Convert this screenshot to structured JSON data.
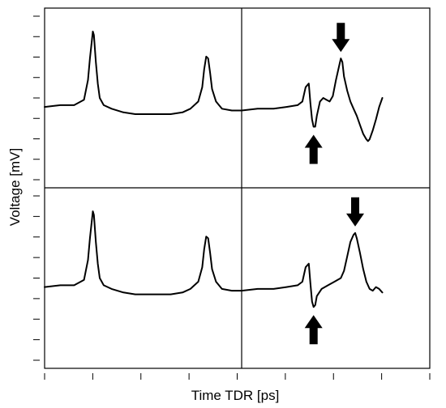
{
  "chart_data": {
    "type": "line",
    "layout": "2x2 panel grid",
    "xlabel": "Time TDR [ps]",
    "ylabel": "Voltage [mV]",
    "xlim": [
      0,
      100
    ],
    "ylim": [
      0,
      100
    ],
    "x_tick_count": 9,
    "y_ticks_per_panel": 9,
    "grid": false,
    "legend": "none",
    "panels": [
      {
        "id": "top-left",
        "row": 0,
        "col": 0,
        "series": [
          {
            "points": [
              [
                0,
                45
              ],
              [
                8,
                46
              ],
              [
                15,
                46
              ],
              [
                20,
                49
              ],
              [
                22,
                60
              ],
              [
                23,
                72
              ],
              [
                24,
                82
              ],
              [
                24.5,
                87
              ],
              [
                25,
                85
              ],
              [
                26,
                70
              ],
              [
                27,
                58
              ],
              [
                28,
                50
              ],
              [
                30,
                46
              ],
              [
                34,
                44
              ],
              [
                40,
                42
              ],
              [
                46,
                41
              ],
              [
                52,
                41
              ],
              [
                58,
                41
              ],
              [
                64,
                41
              ],
              [
                70,
                42
              ],
              [
                74,
                44
              ],
              [
                78,
                48
              ],
              [
                80,
                56
              ],
              [
                81,
                66
              ],
              [
                82,
                73
              ],
              [
                83,
                72
              ],
              [
                84,
                64
              ],
              [
                85,
                55
              ],
              [
                87,
                48
              ],
              [
                90,
                44
              ],
              [
                95,
                43
              ],
              [
                100,
                43
              ]
            ]
          }
        ],
        "arrows": []
      },
      {
        "id": "top-right",
        "row": 0,
        "col": 1,
        "series": [
          {
            "points": [
              [
                0,
                43
              ],
              [
                10,
                44
              ],
              [
                20,
                44
              ],
              [
                28,
                45
              ],
              [
                35,
                46
              ],
              [
                38,
                48
              ],
              [
                40,
                56
              ],
              [
                42,
                58
              ],
              [
                43,
                47
              ],
              [
                44,
                38
              ],
              [
                45,
                34
              ],
              [
                46,
                34
              ],
              [
                47,
                40
              ],
              [
                49,
                48
              ],
              [
                51,
                50
              ],
              [
                53,
                49
              ],
              [
                55,
                48
              ],
              [
                57,
                51
              ],
              [
                59,
                60
              ],
              [
                61,
                68
              ],
              [
                62,
                72
              ],
              [
                63,
                70
              ],
              [
                64,
                62
              ],
              [
                66,
                54
              ],
              [
                68,
                48
              ],
              [
                70,
                44
              ],
              [
                72,
                40
              ],
              [
                74,
                35
              ],
              [
                76,
                30
              ],
              [
                78,
                27
              ],
              [
                79,
                26
              ],
              [
                80,
                27
              ],
              [
                82,
                32
              ],
              [
                84,
                38
              ],
              [
                86,
                45
              ],
              [
                88,
                50
              ]
            ]
          }
        ],
        "arrows": [
          {
            "direction": "up",
            "target_x": 45,
            "target_y": 34
          },
          {
            "direction": "down",
            "target_x": 62,
            "target_y": 72
          }
        ]
      },
      {
        "id": "bottom-left",
        "row": 1,
        "col": 0,
        "series": [
          {
            "points": [
              [
                0,
                45
              ],
              [
                8,
                46
              ],
              [
                15,
                46
              ],
              [
                20,
                49
              ],
              [
                22,
                60
              ],
              [
                23,
                72
              ],
              [
                24,
                82
              ],
              [
                24.5,
                87
              ],
              [
                25,
                85
              ],
              [
                26,
                70
              ],
              [
                27,
                58
              ],
              [
                28,
                50
              ],
              [
                30,
                46
              ],
              [
                34,
                44
              ],
              [
                40,
                42
              ],
              [
                46,
                41
              ],
              [
                52,
                41
              ],
              [
                58,
                41
              ],
              [
                64,
                41
              ],
              [
                70,
                42
              ],
              [
                74,
                44
              ],
              [
                78,
                48
              ],
              [
                80,
                56
              ],
              [
                81,
                66
              ],
              [
                82,
                73
              ],
              [
                83,
                72
              ],
              [
                84,
                64
              ],
              [
                85,
                55
              ],
              [
                87,
                48
              ],
              [
                90,
                44
              ],
              [
                95,
                43
              ],
              [
                100,
                43
              ]
            ]
          }
        ],
        "arrows": []
      },
      {
        "id": "bottom-right",
        "row": 1,
        "col": 1,
        "series": [
          {
            "points": [
              [
                0,
                43
              ],
              [
                10,
                44
              ],
              [
                20,
                44
              ],
              [
                28,
                45
              ],
              [
                35,
                46
              ],
              [
                38,
                48
              ],
              [
                40,
                56
              ],
              [
                42,
                58
              ],
              [
                43,
                47
              ],
              [
                44,
                37
              ],
              [
                45,
                34
              ],
              [
                46,
                35
              ],
              [
                47,
                40
              ],
              [
                50,
                44
              ],
              [
                54,
                46
              ],
              [
                58,
                48
              ],
              [
                62,
                50
              ],
              [
                64,
                54
              ],
              [
                66,
                62
              ],
              [
                68,
                70
              ],
              [
                70,
                74
              ],
              [
                71,
                75
              ],
              [
                72,
                72
              ],
              [
                74,
                64
              ],
              [
                76,
                55
              ],
              [
                78,
                48
              ],
              [
                80,
                44
              ],
              [
                82,
                43
              ],
              [
                84,
                45
              ],
              [
                86,
                44
              ],
              [
                88,
                42
              ]
            ]
          }
        ],
        "arrows": [
          {
            "direction": "up",
            "target_x": 45,
            "target_y": 34
          },
          {
            "direction": "down",
            "target_x": 71,
            "target_y": 75
          }
        ]
      }
    ]
  }
}
